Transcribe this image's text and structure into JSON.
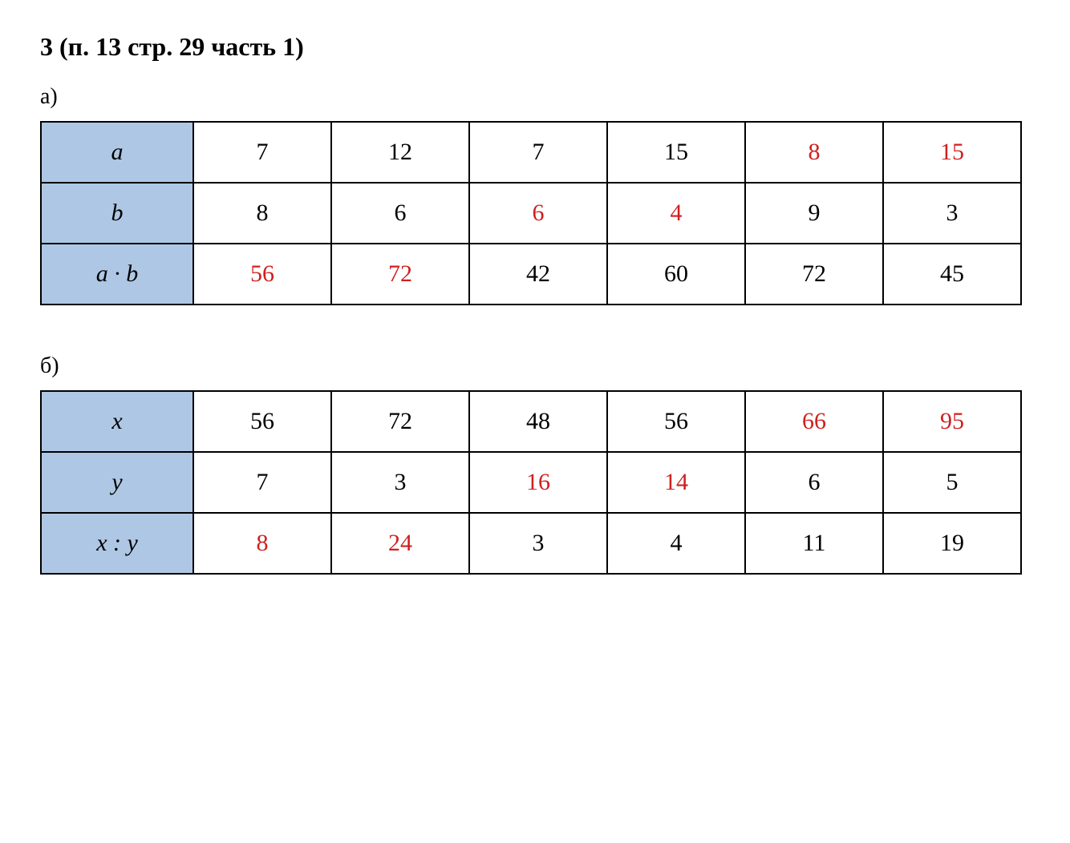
{
  "title": "3 (п. 13 стр. 29 часть 1)",
  "section_a": {
    "label": "а)",
    "columns_count": 6,
    "row_headers": [
      "a",
      "b",
      "a · b"
    ],
    "header_bg": "#aec7e4",
    "border_color": "#000000",
    "font_family": "Times New Roman",
    "cell_fontsize": 30,
    "rows": [
      [
        {
          "value": "7",
          "color": "#000000"
        },
        {
          "value": "12",
          "color": "#000000"
        },
        {
          "value": "7",
          "color": "#000000"
        },
        {
          "value": "15",
          "color": "#000000"
        },
        {
          "value": "8",
          "color": "#d02020"
        },
        {
          "value": "15",
          "color": "#d02020"
        }
      ],
      [
        {
          "value": "8",
          "color": "#000000"
        },
        {
          "value": "6",
          "color": "#000000"
        },
        {
          "value": "6",
          "color": "#d02020"
        },
        {
          "value": "4",
          "color": "#d02020"
        },
        {
          "value": "9",
          "color": "#000000"
        },
        {
          "value": "3",
          "color": "#000000"
        }
      ],
      [
        {
          "value": "56",
          "color": "#d02020"
        },
        {
          "value": "72",
          "color": "#d02020"
        },
        {
          "value": "42",
          "color": "#000000"
        },
        {
          "value": "60",
          "color": "#000000"
        },
        {
          "value": "72",
          "color": "#000000"
        },
        {
          "value": "45",
          "color": "#000000"
        }
      ]
    ]
  },
  "section_b": {
    "label": "б)",
    "columns_count": 6,
    "row_headers": [
      "x",
      "y",
      "x : y"
    ],
    "header_bg": "#aec7e4",
    "border_color": "#000000",
    "font_family": "Times New Roman",
    "cell_fontsize": 30,
    "rows": [
      [
        {
          "value": "56",
          "color": "#000000"
        },
        {
          "value": "72",
          "color": "#000000"
        },
        {
          "value": "48",
          "color": "#000000"
        },
        {
          "value": "56",
          "color": "#000000"
        },
        {
          "value": "66",
          "color": "#d02020"
        },
        {
          "value": "95",
          "color": "#d02020"
        }
      ],
      [
        {
          "value": "7",
          "color": "#000000"
        },
        {
          "value": "3",
          "color": "#000000"
        },
        {
          "value": "16",
          "color": "#d02020"
        },
        {
          "value": "14",
          "color": "#d02020"
        },
        {
          "value": "6",
          "color": "#000000"
        },
        {
          "value": "5",
          "color": "#000000"
        }
      ],
      [
        {
          "value": "8",
          "color": "#d02020"
        },
        {
          "value": "24",
          "color": "#d02020"
        },
        {
          "value": "3",
          "color": "#000000"
        },
        {
          "value": "4",
          "color": "#000000"
        },
        {
          "value": "11",
          "color": "#000000"
        },
        {
          "value": "19",
          "color": "#000000"
        }
      ]
    ]
  }
}
